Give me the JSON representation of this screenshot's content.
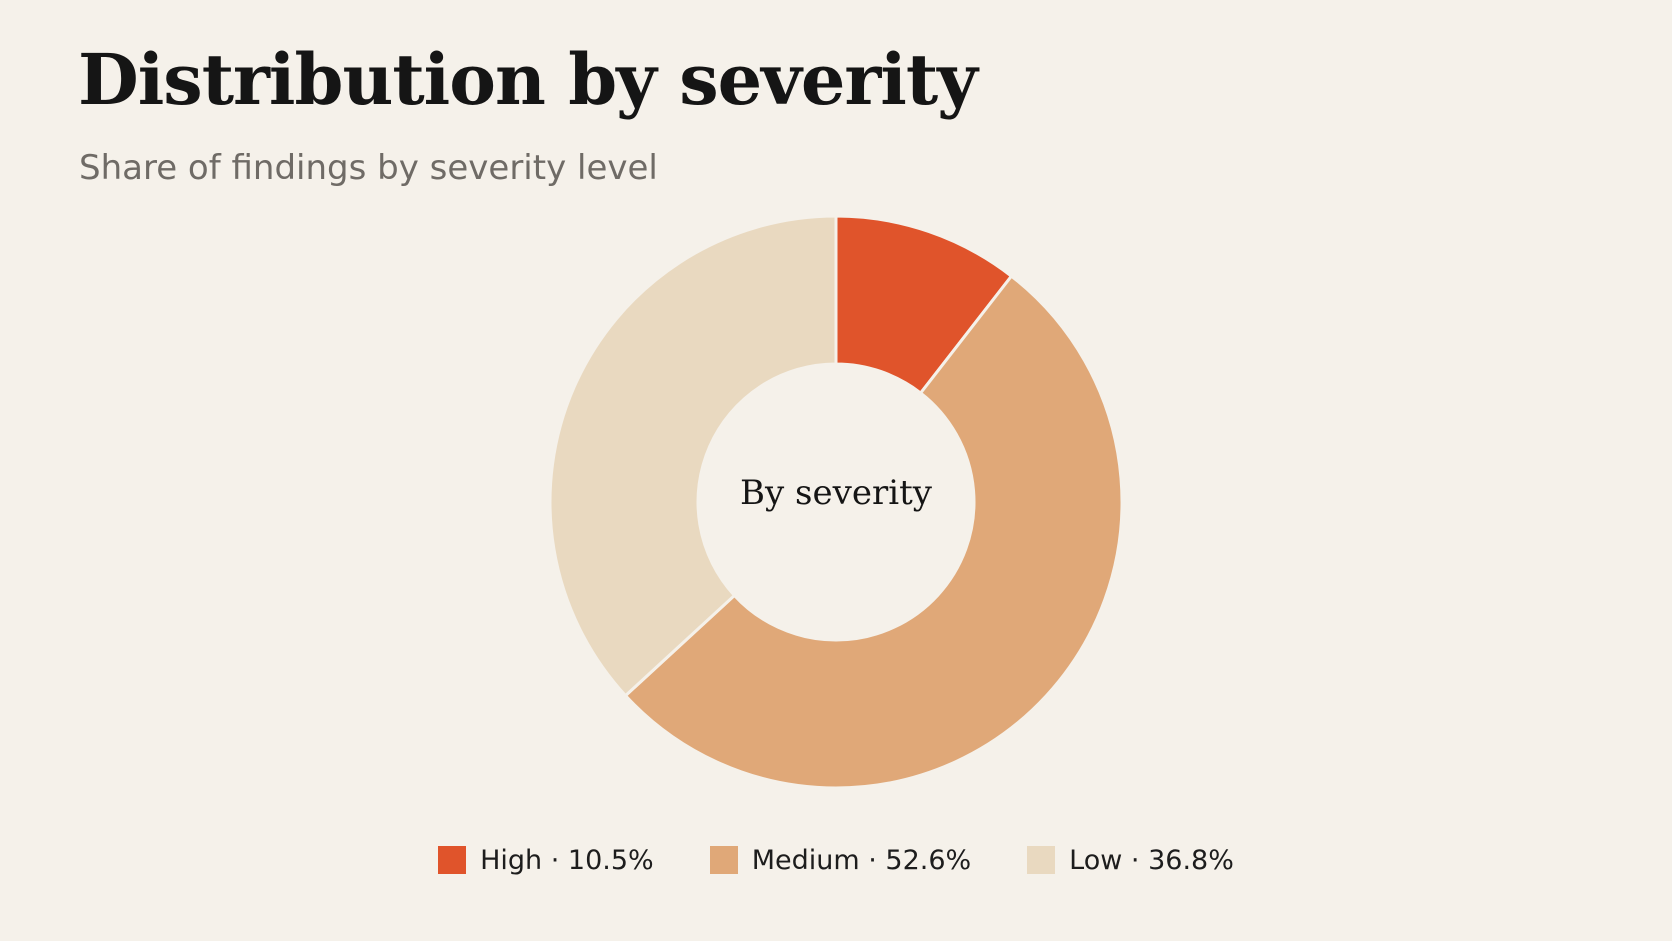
{
  "header": {
    "title": "Distribution by severity",
    "subtitle": "Share of findings by severity level"
  },
  "chart_data": {
    "type": "pie",
    "variant": "donut",
    "title": "Distribution by severity",
    "subtitle": "Share of findings by severity level",
    "center_label": "By severity",
    "categories": [
      "High",
      "Medium",
      "Low"
    ],
    "values": [
      10.5,
      52.6,
      36.8
    ],
    "unit": "%",
    "colors": [
      "#e0542b",
      "#e0a878",
      "#e9d9c0"
    ],
    "start_angle_deg": 0,
    "direction": "clockwise",
    "legend_position": "bottom-center",
    "legend": [
      {
        "label": "High · 10.5%",
        "color": "#e0542b"
      },
      {
        "label": "Medium · 52.6%",
        "color": "#e0a878"
      },
      {
        "label": "Low · 36.8%",
        "color": "#e9d9c0"
      }
    ]
  }
}
